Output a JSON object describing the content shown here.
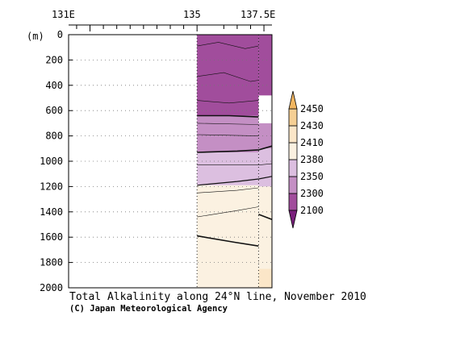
{
  "chart_data": {
    "type": "heatmap",
    "title": "Total Alkalinity along 24°N line, November 2010",
    "credit": "(C) Japan Meteorological Agency",
    "x_axis": {
      "range": [
        130.2,
        137.8
      ],
      "tick_labels": [
        {
          "value": 131,
          "label": "131E"
        },
        {
          "value": 135,
          "label": "135"
        },
        {
          "value": 137.5,
          "label": "137.5E"
        }
      ],
      "minor_ticks": [
        130.5,
        131.5,
        132,
        132.5,
        133,
        133.5,
        134,
        134.5,
        136,
        136.5,
        137
      ]
    },
    "y_axis": {
      "unit_label": "(m)",
      "range": [
        0,
        2000
      ],
      "inverted": true,
      "ticks": [
        0,
        200,
        400,
        600,
        800,
        1000,
        1200,
        1400,
        1600,
        1800,
        2000
      ],
      "grid": "dotted"
    },
    "colorbar": {
      "labels": [
        "2450",
        "2430",
        "2410",
        "2380",
        "2350",
        "2300",
        "2100"
      ],
      "levels": [
        2100,
        2300,
        2350,
        2380,
        2410,
        2430,
        2450
      ],
      "colors": [
        "#a14d9c",
        "#c48fc4",
        "#dcbfe0",
        "#fbf1e1",
        "#fbe6c8",
        "#f5cf94"
      ]
    },
    "sections": [
      {
        "lon_start": 135,
        "lon_end": 137.3,
        "bands": [
          {
            "top": 0,
            "bottom": 640,
            "value_class": "<2300"
          },
          {
            "top": 640,
            "bottom": 930,
            "value_class": "2300-2350"
          },
          {
            "top": 930,
            "bottom": 1190,
            "value_class": "2350-2380"
          },
          {
            "top": 1190,
            "bottom": 2000,
            "value_class": "2380-2410"
          }
        ],
        "stations_lon": [
          135,
          137.3
        ]
      },
      {
        "lon_start": 137.3,
        "lon_end": 138.0,
        "bands": [
          {
            "top": 0,
            "bottom": 480,
            "value_class": "<2300"
          },
          {
            "top": 700,
            "bottom": 900,
            "value_class": "2300-2350"
          },
          {
            "top": 900,
            "bottom": 1200,
            "value_class": "2350-2380"
          },
          {
            "top": 1200,
            "bottom": 1850,
            "value_class": "2380-2410"
          },
          {
            "top": 1850,
            "bottom": 2000,
            "value_class": "2410-2430"
          }
        ],
        "missing": [
          {
            "top": 480,
            "bottom": 700
          }
        ]
      }
    ]
  }
}
